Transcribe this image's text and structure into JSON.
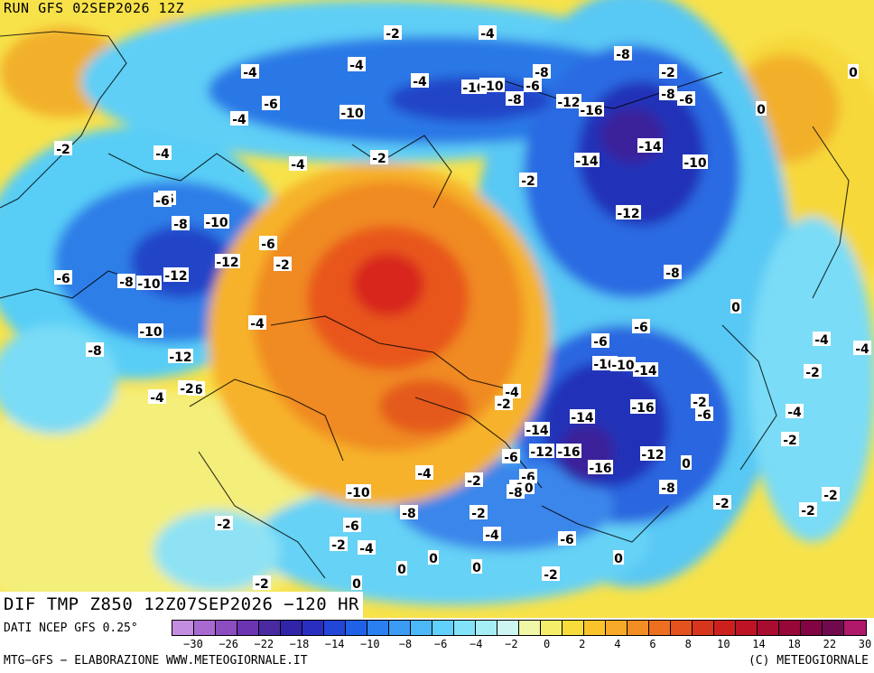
{
  "header": {
    "run_label": "RUN GFS 02SEP2026 12Z"
  },
  "map": {
    "field_title": "DIF TMP Z850 12Z07SEP2026 −120 HR",
    "anomaly_labels": [
      "-2",
      "-4",
      "-8",
      "-4",
      "-2",
      "-4",
      "-4",
      "-8",
      "-2",
      "-4",
      "-4",
      "-6",
      "-2",
      "-6",
      "-10",
      "-10",
      "-8",
      "-6",
      "-12",
      "-16",
      "-8",
      "-6",
      "-10",
      "-14",
      "-14",
      "-10",
      "-2",
      "-4",
      "-8",
      "-10",
      "-12",
      "-6",
      "-8",
      "-10",
      "-12",
      "-6",
      "-4",
      "-2",
      "-6",
      "-8",
      "-10",
      "-12",
      "-12",
      "-8",
      "-6",
      "-6",
      "-10",
      "-4",
      "-2",
      "-14",
      "-10",
      "-14",
      "-16",
      "-12",
      "-16",
      "-16",
      "-14",
      "-12",
      "-8",
      "-6",
      "-6",
      "-4",
      "-10",
      "-8",
      "-2",
      "-6",
      "-8",
      "-10",
      "-6",
      "-4",
      "-2",
      "-2",
      "-6",
      "-4",
      "-2",
      "-2",
      "-4",
      "-2",
      "0",
      "0",
      "0",
      "0",
      "0",
      "0",
      "0",
      "0",
      "0",
      "-2",
      "-4",
      "-2",
      "-2",
      "-4",
      "-2",
      "-2",
      "-4",
      "-2",
      "-6",
      "-2"
    ]
  },
  "legend": {
    "source": "DATI NCEP GFS 0.25°",
    "colors": [
      "#c48ee0",
      "#a86ad0",
      "#8a4ec0",
      "#6c34b0",
      "#4a2aa0",
      "#3224a8",
      "#2a2ec0",
      "#2246d8",
      "#1f62e8",
      "#2a80f0",
      "#3a9cf4",
      "#4cb8f8",
      "#62d0fc",
      "#82e2fa",
      "#a6eef6",
      "#cdf6f2",
      "#f0f8a8",
      "#f6ee6a",
      "#f8dc3c",
      "#f8c42a",
      "#f6aa28",
      "#f28e24",
      "#ec7020",
      "#e4521e",
      "#d8361c",
      "#cc201e",
      "#bc1424",
      "#a80c30",
      "#960838",
      "#820442",
      "#700a4e",
      "#b0186a"
    ],
    "tick_labels": [
      "−30",
      "−26",
      "−22",
      "−18",
      "−14",
      "−10",
      "−8",
      "−6",
      "−4",
      "−2",
      "0",
      "2",
      "4",
      "6",
      "8",
      "10",
      "14",
      "18",
      "22",
      "30"
    ]
  },
  "footer": {
    "credit_left": "MTG−GFS − ELABORAZIONE WWW.METEOGIORNALE.IT",
    "credit_right": "(C) METEOGIORNALE"
  }
}
